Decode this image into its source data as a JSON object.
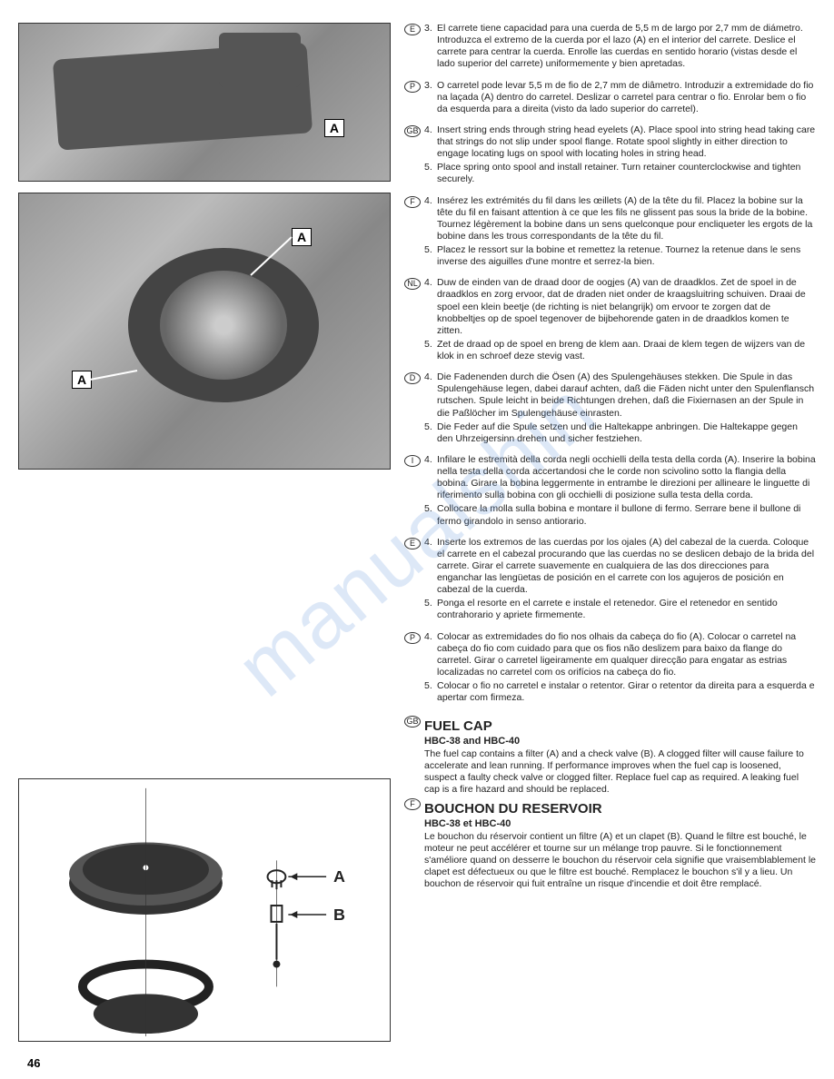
{
  "page_number": "46",
  "watermark": "manualshin",
  "photos": {
    "photo1": {
      "label_a": "A"
    },
    "photo2": {
      "label_a_top": "A",
      "label_a_left": "A"
    }
  },
  "diagram": {
    "label_a": "A",
    "label_b": "B"
  },
  "blocks": [
    {
      "code": "E",
      "items": [
        {
          "n": "3.",
          "t": "El carrete tiene capacidad para una cuerda de 5,5 m de largo por 2,7 mm de diámetro. Introduzca el extremo de la cuerda por el lazo (A) en el interior del carrete. Deslice el carrete para centrar la cuerda. Enrolle las cuerdas en sentido horario (vistas desde el lado superior del carrete) uniformemente y bien apretadas."
        }
      ]
    },
    {
      "code": "P",
      "items": [
        {
          "n": "3.",
          "t": "O carretel pode levar 5,5 m de fio de 2,7 mm de diâmetro. Introduzir a extremidade do fio na laçada (A) dentro do carretel. Deslizar o carretel para centrar o fio. Enrolar bem o fio da esquerda para a direita (visto da lado superior do carretel)."
        }
      ]
    },
    {
      "code": "GB",
      "items": [
        {
          "n": "4.",
          "t": "Insert string ends through string head eyelets (A). Place spool into string head taking care that strings do not slip under spool flange. Rotate spool slightly in either direction to engage locating lugs on spool with locating holes in string head."
        },
        {
          "n": "5.",
          "t": "Place spring onto spool and install retainer. Turn retainer counterclockwise and tighten securely."
        }
      ]
    },
    {
      "code": "F",
      "items": [
        {
          "n": "4.",
          "t": "Insérez les extrémités du fil dans les œillets (A) de la tête du fil. Placez la bobine sur la tête du fil en faisant attention à ce que les fils ne glissent pas sous la bride de la bobine. Tournez légèrement la bobine dans un sens quelconque pour encliqueter les ergots de la bobine dans les trous correspondants de la tête du fil."
        },
        {
          "n": "5.",
          "t": "Placez le ressort sur la bobine et remettez la retenue. Tournez la retenue dans le sens inverse des aiguilles d'une montre et serrez-la bien."
        }
      ]
    },
    {
      "code": "NL",
      "items": [
        {
          "n": "4.",
          "t": "Duw de einden van de draad door de oogjes (A) van de draadklos. Zet de spoel in de draadklos en zorg ervoor, dat de draden niet onder de kraagsluitring schuiven. Draai de spoel een klein beetje (de richting is niet belangrijk) om ervoor te zorgen dat de knobbeltjes op de spoel tegenover de bijbehorende gaten in de draadklos komen te zitten."
        },
        {
          "n": "5.",
          "t": "Zet de draad op de spoel en breng de klem aan. Draai de klem tegen de wijzers van de klok in en schroef deze stevig vast."
        }
      ]
    },
    {
      "code": "D",
      "items": [
        {
          "n": "4.",
          "t": "Die Fadenenden durch die Ösen (A) des Spulengehäuses stekken. Die Spule in das Spulengehäuse legen, dabei darauf achten, daß die Fäden nicht unter den Spulenflansch rutschen. Spule leicht in beide Richtungen drehen, daß die Fixiernasen an der Spule in die Paßlöcher im Spulengehäuse einrasten."
        },
        {
          "n": "5.",
          "t": "Die Feder auf die Spule setzen und die Haltekappe anbringen. Die Haltekappe gegen den Uhrzeigersinn drehen und sicher festziehen."
        }
      ]
    },
    {
      "code": "I",
      "items": [
        {
          "n": "4.",
          "t": "Infilare le estremità della corda negli occhielli della testa della corda (A). Inserire la bobina nella testa della corda accertandosi che le corde non scivolino sotto la flangia della bobina. Girare la bobina leggermente in entrambe le direzioni per allineare le linguette di riferimento sulla bobina con gli occhielli di posizione sulla testa della corda."
        },
        {
          "n": "5.",
          "t": "Collocare la molla sulla bobina e montare il bullone di fermo. Serrare bene il bullone di fermo girandolo in senso antiorario."
        }
      ]
    },
    {
      "code": "E",
      "items": [
        {
          "n": "4.",
          "t": "Inserte los extremos de las cuerdas por los ojales (A) del cabezal de la cuerda. Coloque el carrete en el cabezal procurando que las cuerdas no se deslicen debajo de la brida del carrete. Girar el carrete suavemente en cualquiera de las dos direcciones para enganchar las lengüetas de posición en el carrete con los agujeros de posición en cabezal de la cuerda."
        },
        {
          "n": "5.",
          "t": "Ponga el resorte en el carrete e instale el retenedor. Gire el retenedor en sentido contrahorario y apriete firmemente."
        }
      ]
    },
    {
      "code": "P",
      "items": [
        {
          "n": "4.",
          "t": "Colocar as extremidades do fio nos olhais da cabeça do fio (A). Colocar o carretel na cabeça do fio com cuidado para que os fios não deslizem para baixo da flange do carretel. Girar o carretel ligeiramente em qualquer direcção para engatar as estrias localizadas no carretel com os orifícios na cabeça do fio."
        },
        {
          "n": "5.",
          "t": "Colocar o fio no carretel e instalar o retentor. Girar o retentor da direita para a esquerda e apertar com firmeza."
        }
      ]
    }
  ],
  "sections": [
    {
      "code": "GB",
      "title": "FUEL CAP",
      "sub": "HBC-38 and HBC-40",
      "body": "The fuel cap contains a filter (A) and a check valve (B). A clogged filter will cause failure to accelerate and lean running. If performance improves when the fuel cap is loosened, suspect a faulty check valve or clogged filter. Replace fuel cap as required. A leaking fuel cap is a fire hazard and should be replaced."
    },
    {
      "code": "F",
      "title": "BOUCHON DU RESERVOIR",
      "sub": "HBC-38 et HBC-40",
      "body": "Le bouchon du réservoir contient un filtre (A) et un clapet (B). Quand le filtre est bouché, le moteur ne peut accélérer et tourne sur un mélange trop pauvre. Si le fonctionnement s'améliore quand on desserre le bouchon du réservoir cela signifie que vraisemblablement le clapet est défectueux ou que le filtre est bouché. Remplacez le bouchon s'il y a lieu. Un bouchon de réservoir qui fuit entraîne un risque d'incendie et doit être remplacé."
    }
  ]
}
